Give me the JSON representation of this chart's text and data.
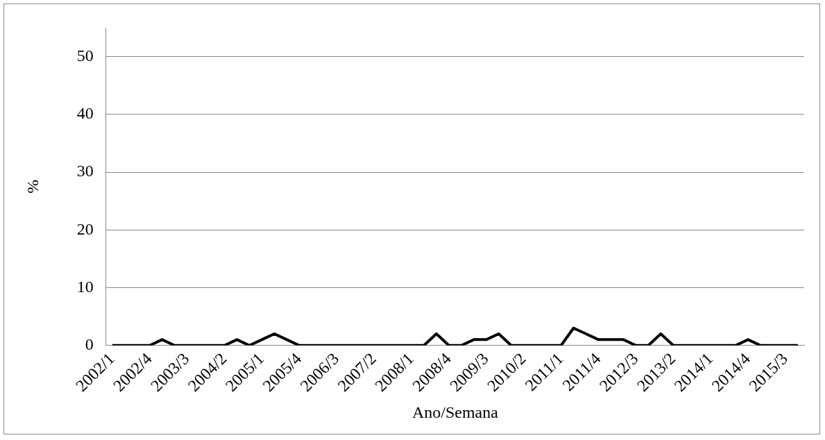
{
  "chart_data": {
    "type": "line",
    "categories": [
      "2002/1",
      null,
      null,
      "2002/4",
      null,
      null,
      "2003/3",
      null,
      null,
      "2004/2",
      null,
      null,
      "2005/1",
      null,
      null,
      "2005/4",
      null,
      null,
      "2006/3",
      null,
      null,
      "2007/2",
      null,
      null,
      "2008/1",
      null,
      null,
      "2008/4",
      null,
      null,
      "2009/3",
      null,
      null,
      "2010/2",
      null,
      null,
      "2011/1",
      null,
      null,
      "2011/4",
      null,
      null,
      "2012/3",
      null,
      null,
      "2013/2",
      null,
      null,
      "2014/1",
      null,
      null,
      "2014/4",
      null,
      null,
      "2015/3",
      null
    ],
    "series": [
      {
        "color": "#000000",
        "values": [
          0,
          0,
          0,
          0,
          1,
          0,
          0,
          0,
          0,
          0,
          1,
          0,
          1,
          2,
          1,
          0,
          0,
          0,
          0,
          0,
          0,
          0,
          0,
          0,
          0,
          0,
          2,
          0,
          0,
          1,
          1,
          2,
          0,
          0,
          0,
          0,
          0,
          3,
          2,
          1,
          1,
          1,
          0,
          0,
          2,
          0,
          0,
          0,
          0,
          0,
          0,
          1,
          0,
          0,
          0,
          0
        ]
      }
    ],
    "xlabel": "Ano/Semana",
    "ylabel": "%",
    "ylim": [
      0,
      55
    ],
    "yticks": [
      0,
      10,
      20,
      30,
      40,
      50
    ],
    "grid": "y",
    "legend": false,
    "marker": "none",
    "line_style": "solid"
  }
}
